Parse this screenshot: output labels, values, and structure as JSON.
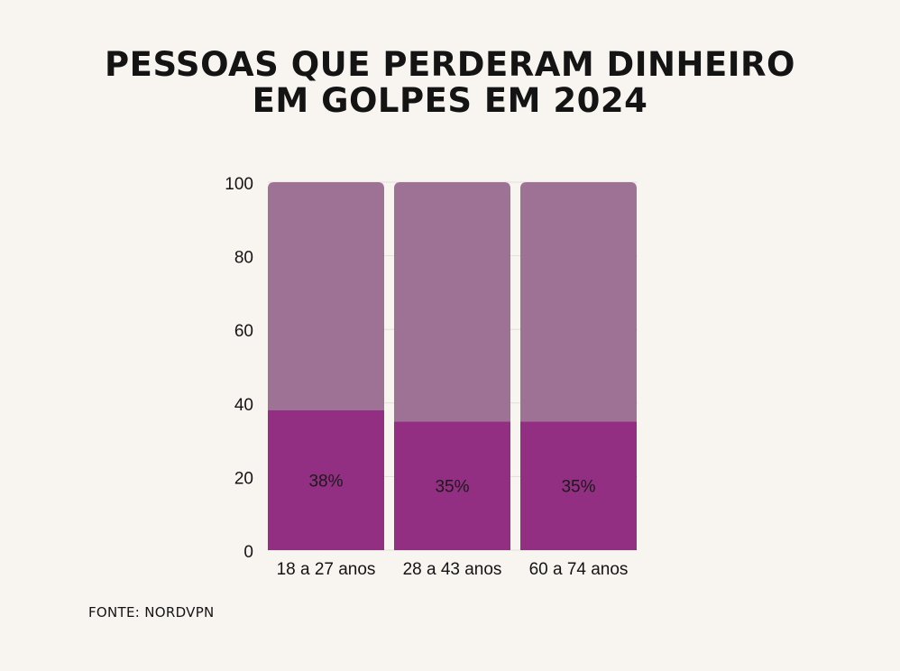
{
  "title_line1": "PESSOAS QUE PERDERAM DINHEIRO",
  "title_line2": "EM GOLPES EM 2024",
  "source": "FONTE: NORDVPN",
  "colors": {
    "background": "#f8f5f1",
    "primary": "#932f82",
    "remainder": "#9d7294",
    "text": "#141414"
  },
  "chart_data": {
    "type": "bar",
    "stacked": true,
    "categories": [
      "18 a 27 anos",
      "28 a 43 anos",
      "60 a 74 anos"
    ],
    "series": [
      {
        "values": [
          38,
          35,
          35
        ]
      },
      {
        "values": [
          62,
          65,
          65
        ]
      }
    ],
    "data_labels": [
      "38%",
      "35%",
      "35%"
    ],
    "ylim": [
      0,
      100
    ],
    "yticks": [
      0,
      20,
      40,
      60,
      80,
      100
    ],
    "grid": true
  }
}
